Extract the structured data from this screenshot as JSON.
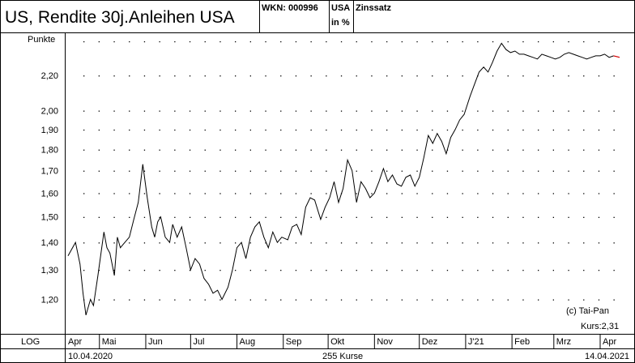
{
  "header": {
    "title": "US, Rendite 30j.Anleihen USA",
    "wkn": "WKN: 000996",
    "country": "USA",
    "unit": "in %",
    "category": "Zinssatz"
  },
  "footer": {
    "scale": "LOG",
    "start_date": "10.04.2020",
    "count": "255 Kurse",
    "end_date": "14.04.2021"
  },
  "annotations": {
    "copyright": "(c) Tai-Pan",
    "last": "Kurs:2,31"
  },
  "colors": {
    "line": "#000000",
    "last_segment": "#d40000",
    "grid_dots": "#000000"
  },
  "chart_data": {
    "type": "line",
    "yscale": "log",
    "ylabel": "Punkte",
    "ylim": [
      1.11,
      2.45
    ],
    "y_ticks": [
      1.2,
      1.3,
      1.4,
      1.5,
      1.6,
      1.7,
      1.8,
      1.9,
      2.0,
      2.2
    ],
    "y_tick_labels": [
      "1,20",
      "1,30",
      "1,40",
      "1,50",
      "1,60",
      "1,70",
      "1,80",
      "1,90",
      "2,00",
      "2,20"
    ],
    "x_ticks": [
      "Apr",
      "Mai",
      "Jun",
      "Jul",
      "Aug",
      "Sep",
      "Okt",
      "Nov",
      "Dez",
      "J'21",
      "Feb",
      "Mrz",
      "Apr"
    ],
    "series": [
      {
        "x": [
          "10.04.2020",
          "15.04.2020",
          "18.04.2020",
          "20.04.2020",
          "22.04.2020",
          "25.04.2020",
          "27.04.2020",
          "30.04.2020",
          "04.05.2020",
          "06.05.2020",
          "08.05.2020",
          "11.05.2020",
          "13.05.2020",
          "15.05.2020",
          "18.05.2020",
          "21.05.2020",
          "24.05.2020",
          "27.05.2020",
          "30.05.2020",
          "02.06.2020",
          "05.06.2020",
          "07.06.2020",
          "09.06.2020",
          "11.06.2020",
          "14.06.2020",
          "17.06.2020",
          "19.06.2020",
          "22.06.2020",
          "25.06.2020",
          "28.06.2020",
          "01.07.2020",
          "04.07.2020",
          "07.07.2020",
          "10.07.2020",
          "13.07.2020",
          "16.07.2020",
          "19.07.2020",
          "22.07.2020",
          "26.07.2020",
          "29.07.2020",
          "01.08.2020",
          "04.08.2020",
          "07.08.2020",
          "10.08.2020",
          "13.08.2020",
          "16.08.2020",
          "19.08.2020",
          "22.08.2020",
          "25.08.2020",
          "28.08.2020",
          "31.08.2020",
          "04.09.2020",
          "07.09.2020",
          "10.09.2020",
          "13.09.2020",
          "16.09.2020",
          "19.09.2020",
          "22.09.2020",
          "26.09.2020",
          "29.09.2020",
          "02.10.2020",
          "05.10.2020",
          "08.10.2020",
          "11.10.2020",
          "14.10.2020",
          "17.10.2020",
          "20.10.2020",
          "23.10.2020",
          "26.10.2020",
          "29.10.2020",
          "01.11.2020",
          "04.11.2020",
          "07.11.2020",
          "10.11.2020",
          "13.11.2020",
          "16.11.2020",
          "19.11.2020",
          "22.11.2020",
          "25.11.2020",
          "28.11.2020",
          "01.12.2020",
          "04.12.2020",
          "07.12.2020",
          "10.12.2020",
          "13.12.2020",
          "16.12.2020",
          "19.12.2020",
          "22.12.2020",
          "25.12.2020",
          "28.12.2020",
          "31.12.2020",
          "04.01.2021",
          "07.01.2021",
          "10.01.2021",
          "13.01.2021",
          "16.01.2021",
          "19.01.2021",
          "22.01.2021",
          "25.01.2021",
          "28.01.2021",
          "31.01.2021",
          "03.02.2021",
          "06.02.2021",
          "09.02.2021",
          "12.02.2021",
          "15.02.2021",
          "18.02.2021",
          "21.02.2021",
          "24.02.2021",
          "27.02.2021",
          "02.03.2021",
          "05.03.2021",
          "08.03.2021",
          "11.03.2021",
          "14.03.2021",
          "17.03.2021",
          "20.03.2021",
          "23.03.2021",
          "26.03.2021",
          "29.03.2021",
          "01.04.2021",
          "04.04.2021",
          "07.04.2021",
          "10.04.2021",
          "14.04.2021"
        ],
        "values": [
          1.35,
          1.4,
          1.32,
          1.22,
          1.15,
          1.2,
          1.18,
          1.28,
          1.44,
          1.38,
          1.36,
          1.28,
          1.42,
          1.38,
          1.4,
          1.42,
          1.49,
          1.56,
          1.73,
          1.58,
          1.46,
          1.42,
          1.48,
          1.5,
          1.42,
          1.4,
          1.47,
          1.42,
          1.46,
          1.38,
          1.3,
          1.34,
          1.32,
          1.27,
          1.25,
          1.22,
          1.23,
          1.2,
          1.24,
          1.3,
          1.38,
          1.4,
          1.34,
          1.42,
          1.46,
          1.48,
          1.42,
          1.38,
          1.44,
          1.4,
          1.42,
          1.41,
          1.46,
          1.47,
          1.43,
          1.54,
          1.58,
          1.57,
          1.49,
          1.54,
          1.58,
          1.65,
          1.56,
          1.62,
          1.75,
          1.7,
          1.56,
          1.65,
          1.62,
          1.58,
          1.6,
          1.65,
          1.71,
          1.65,
          1.68,
          1.64,
          1.63,
          1.67,
          1.68,
          1.63,
          1.67,
          1.76,
          1.87,
          1.83,
          1.88,
          1.84,
          1.78,
          1.86,
          1.9,
          1.95,
          1.98,
          2.08,
          2.15,
          2.22,
          2.25,
          2.22,
          2.28,
          2.35,
          2.4,
          2.36,
          2.34,
          2.35,
          2.33,
          2.33,
          2.32,
          2.31,
          2.3,
          2.33,
          2.32,
          2.31,
          2.3,
          2.31,
          2.33,
          2.34,
          2.33,
          2.32,
          2.31,
          2.3,
          2.31,
          2.32,
          2.32,
          2.33,
          2.31,
          2.32,
          2.31
        ]
      }
    ]
  }
}
